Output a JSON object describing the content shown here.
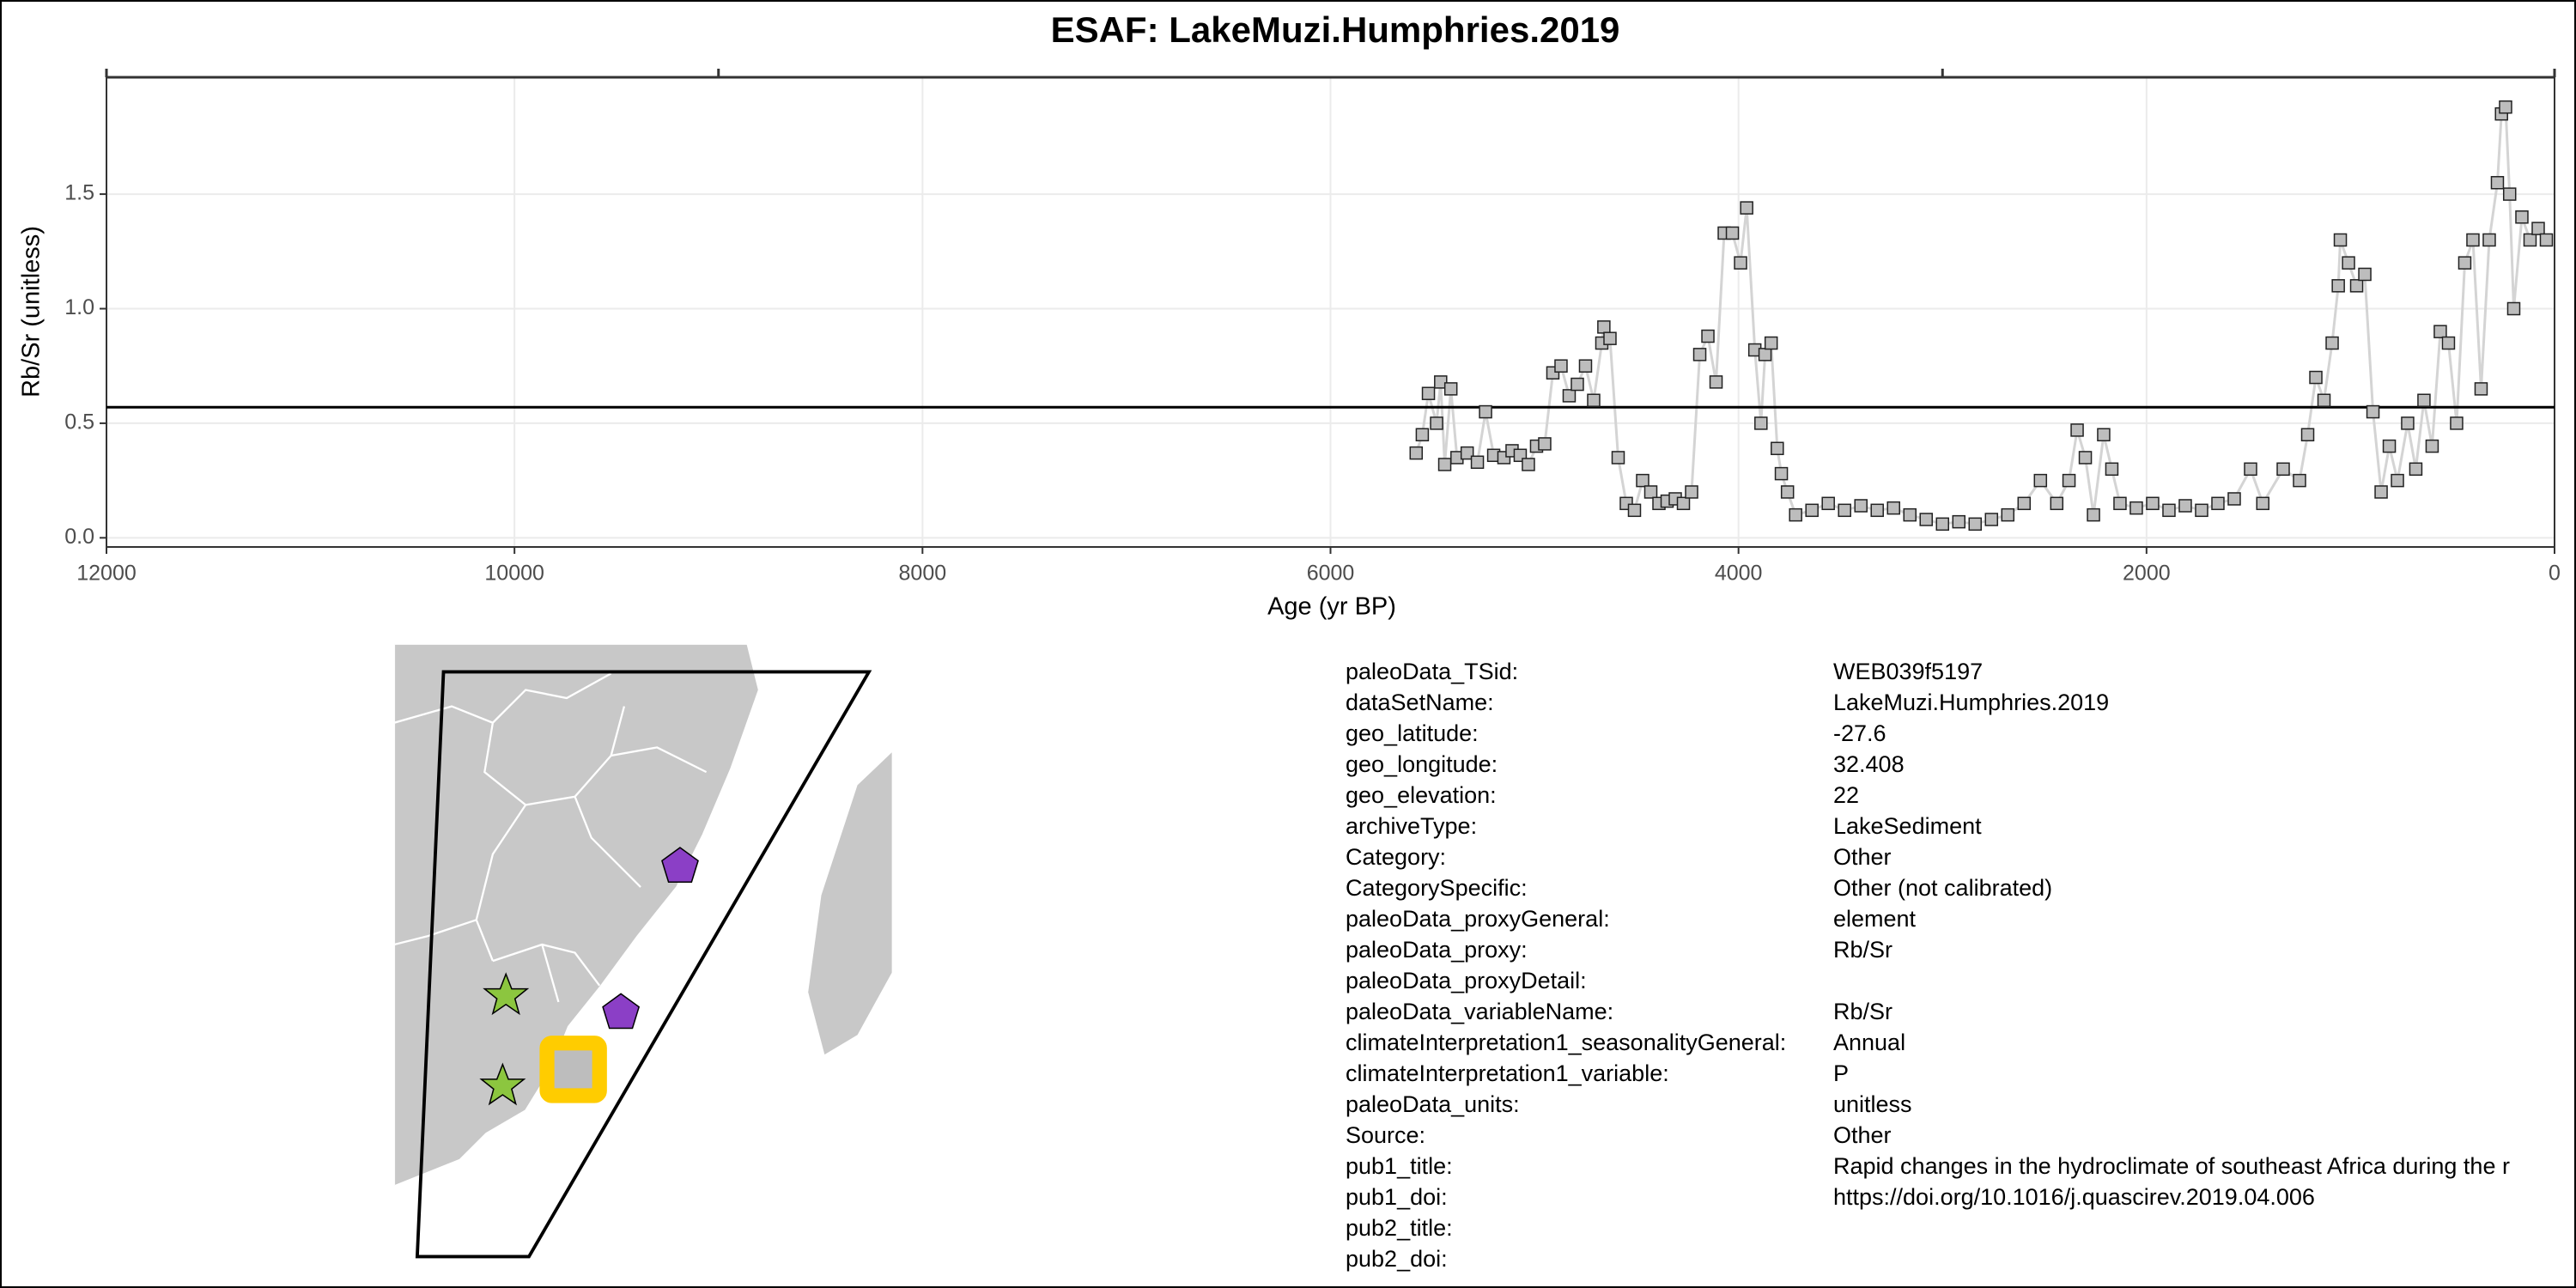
{
  "chart_data": {
    "type": "line",
    "title": "ESAF: LakeMuzi.Humphries.2019",
    "x_label": "Age (yr BP)",
    "y_label": "Rb/Sr (unitless)",
    "xlim": [
      12000,
      0
    ],
    "xticks": [
      12000,
      10000,
      8000,
      6000,
      4000,
      2000,
      0
    ],
    "x2ticks": [
      12000,
      9000,
      3000,
      0
    ],
    "ylim": [
      -0.04,
      2.01
    ],
    "yticks": [
      {
        "value": 0,
        "label": "0.0"
      },
      0.5,
      {
        "value": 1,
        "label": "1.0"
      },
      1.5
    ],
    "hline": 0.57,
    "grid": true,
    "color": "#bdbdbd",
    "line_color": "#d4d4d4",
    "x": [
      5580,
      5550,
      5520,
      5480,
      5460,
      5440,
      5410,
      5380,
      5330,
      5280,
      5240,
      5200,
      5150,
      5110,
      5070,
      5030,
      4990,
      4950,
      4910,
      4870,
      4830,
      4790,
      4750,
      4710,
      4670,
      4660,
      4630,
      4590,
      4550,
      4510,
      4470,
      4430,
      4390,
      4350,
      4310,
      4270,
      4230,
      4190,
      4150,
      4110,
      4070,
      4030,
      3990,
      3960,
      3920,
      3890,
      3870,
      3840,
      3810,
      3790,
      3760,
      3720,
      3640,
      3560,
      3480,
      3400,
      3320,
      3240,
      3160,
      3080,
      3000,
      2920,
      2840,
      2760,
      2680,
      2600,
      2520,
      2440,
      2380,
      2340,
      2300,
      2260,
      2210,
      2170,
      2130,
      2050,
      1970,
      1890,
      1810,
      1730,
      1650,
      1570,
      1490,
      1430,
      1330,
      1250,
      1210,
      1170,
      1130,
      1090,
      1060,
      1050,
      1010,
      970,
      930,
      890,
      850,
      810,
      770,
      720,
      680,
      640,
      600,
      560,
      520,
      480,
      440,
      400,
      360,
      320,
      280,
      260,
      240,
      220,
      200,
      160,
      120,
      80,
      40
    ],
    "values": [
      0.37,
      0.45,
      0.63,
      0.5,
      0.68,
      0.32,
      0.65,
      0.35,
      0.37,
      0.33,
      0.55,
      0.36,
      0.35,
      0.38,
      0.36,
      0.32,
      0.4,
      0.41,
      0.72,
      0.75,
      0.62,
      0.67,
      0.75,
      0.6,
      0.85,
      0.92,
      0.87,
      0.35,
      0.15,
      0.12,
      0.25,
      0.2,
      0.15,
      0.16,
      0.17,
      0.15,
      0.2,
      0.8,
      0.88,
      0.68,
      1.33,
      1.33,
      1.2,
      1.44,
      0.82,
      0.5,
      0.8,
      0.85,
      0.39,
      0.28,
      0.2,
      0.1,
      0.12,
      0.15,
      0.12,
      0.14,
      0.12,
      0.13,
      0.1,
      0.08,
      0.06,
      0.07,
      0.06,
      0.08,
      0.1,
      0.15,
      0.25,
      0.15,
      0.25,
      0.47,
      0.35,
      0.1,
      0.45,
      0.3,
      0.15,
      0.13,
      0.15,
      0.12,
      0.14,
      0.12,
      0.15,
      0.17,
      0.3,
      0.15,
      0.3,
      0.25,
      0.45,
      0.7,
      0.6,
      0.85,
      1.1,
      1.3,
      1.2,
      1.1,
      1.15,
      0.55,
      0.2,
      0.4,
      0.25,
      0.5,
      0.3,
      0.6,
      0.4,
      0.9,
      0.85,
      0.5,
      1.2,
      1.3,
      0.65,
      1.3,
      1.55,
      1.85,
      1.88,
      1.5,
      1.0,
      1.4,
      1.3,
      1.35,
      1.3
    ]
  },
  "metadata": {
    "rows": [
      {
        "key": "paleoData_TSid:",
        "value": "WEB039f5197"
      },
      {
        "key": "dataSetName:",
        "value": "LakeMuzi.Humphries.2019"
      },
      {
        "key": "geo_latitude:",
        "value": "-27.6"
      },
      {
        "key": "geo_longitude:",
        "value": "32.408"
      },
      {
        "key": "geo_elevation:",
        "value": "22"
      },
      {
        "key": "archiveType:",
        "value": "LakeSediment"
      },
      {
        "key": "Category:",
        "value": "Other"
      },
      {
        "key": "CategorySpecific:",
        "value": "Other (not calibrated)"
      },
      {
        "key": "paleoData_proxyGeneral:",
        "value": "element"
      },
      {
        "key": "paleoData_proxy:",
        "value": "Rb/Sr"
      },
      {
        "key": "paleoData_proxyDetail:"
      },
      {
        "key": "paleoData_variableName:",
        "value": "Rb/Sr"
      },
      {
        "key": "climateInterpretation1_seasonalityGeneral:",
        "value": "Annual"
      },
      {
        "key": "climateInterpretation1_variable:",
        "value": "P"
      },
      {
        "key": "paleoData_units:",
        "value": "unitless"
      },
      {
        "key": "Source:",
        "value": "Other"
      },
      {
        "key": "pub1_title:",
        "value": "Rapid changes in the hydroclimate of southeast Africa during the r"
      },
      {
        "key": "pub1_doi:",
        "value": "https://doi.org/10.1016/j.quascirev.2019.04.006"
      },
      {
        "key": "pub2_title:"
      },
      {
        "key": "pub2_doi:"
      }
    ]
  }
}
